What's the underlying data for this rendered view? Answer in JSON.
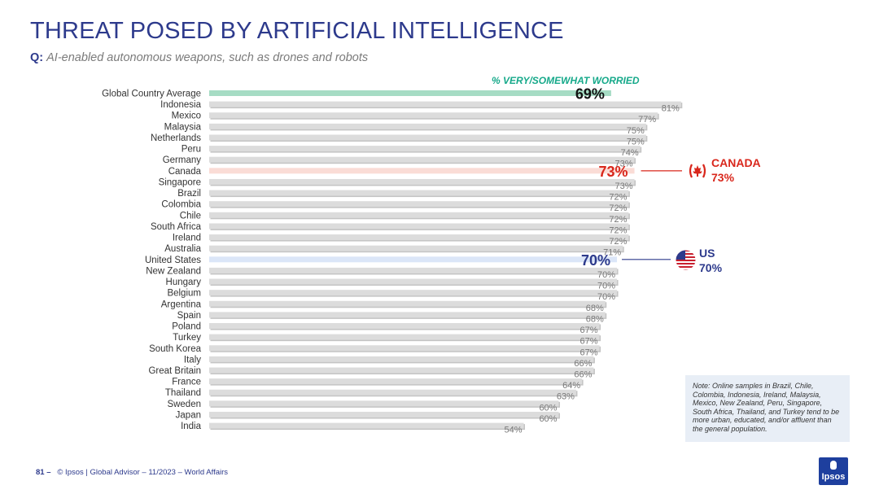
{
  "title": "THREAT POSED BY ARTIFICIAL INTELLIGENCE",
  "question": {
    "label": "Q:",
    "text": "AI-enabled autonomous weapons, such as drones and robots"
  },
  "measure_label": "% VERY/SOMEWHAT WORRIED",
  "callouts": {
    "canada": {
      "name": "CANADA",
      "value": "73%"
    },
    "us": {
      "name": "US",
      "value": "70%"
    }
  },
  "note": "Note: Online samples in Brazil, Chile, Colombia, Indonesia, Ireland, Malaysia, Mexico, New Zealand, Peru, Singapore, South Africa, Thailand, and Turkey tend to be more urban, educated, and/or affluent than the general population.",
  "footer": {
    "page": "81 –",
    "text": "© Ipsos | Global Advisor – 11/2023 – World Affairs"
  },
  "logo_text": "Ipsos",
  "colors": {
    "title": "#2d3a8c",
    "measure": "#16a98a",
    "bar_default": "#dcdcdc",
    "bar_global": "#a6dcc4",
    "bar_canada": "#fadcd6",
    "bar_us": "#dbe6f8",
    "canada": "#d9271c",
    "us": "#2d3a8c"
  },
  "chart_data": {
    "type": "bar",
    "orientation": "horizontal",
    "categories": [
      "Global Country Average",
      "Indonesia",
      "Mexico",
      "Malaysia",
      "Netherlands",
      "Peru",
      "Germany",
      "Canada",
      "Singapore",
      "Brazil",
      "Colombia",
      "Chile",
      "South Africa",
      "Ireland",
      "Australia",
      "United States",
      "New Zealand",
      "Hungary",
      "Belgium",
      "Argentina",
      "Spain",
      "Poland",
      "Turkey",
      "South Korea",
      "Italy",
      "Great Britain",
      "France",
      "Thailand",
      "Sweden",
      "Japan",
      "India"
    ],
    "values": [
      69,
      81,
      77,
      75,
      75,
      74,
      73,
      73,
      73,
      72,
      72,
      72,
      72,
      72,
      71,
      70,
      70,
      70,
      70,
      68,
      68,
      67,
      67,
      67,
      66,
      66,
      64,
      63,
      60,
      60,
      54
    ],
    "value_labels": [
      "69%",
      "81%",
      "77%",
      "75%",
      "75%",
      "74%",
      "73%",
      "73%",
      "73%",
      "72%",
      "72%",
      "72%",
      "72%",
      "72%",
      "71%",
      "70%",
      "70%",
      "70%",
      "70%",
      "68%",
      "68%",
      "67%",
      "67%",
      "67%",
      "66%",
      "66%",
      "64%",
      "63%",
      "60%",
      "60%",
      "54%"
    ],
    "highlight": {
      "Global Country Average": "global",
      "Canada": "canada",
      "United States": "us"
    },
    "xlim": [
      0,
      100
    ],
    "grid": false,
    "legend": "none"
  }
}
